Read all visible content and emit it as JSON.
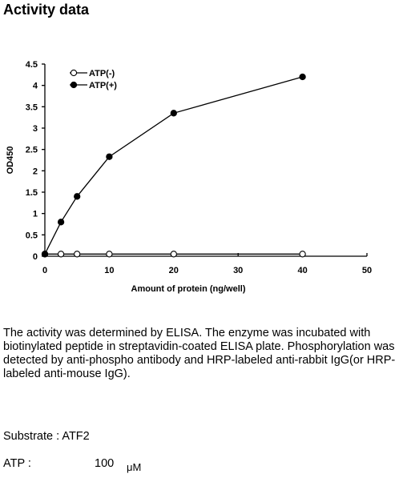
{
  "heading": "Activity data",
  "chart_data": {
    "type": "line",
    "title": "",
    "xlabel": "Amount of protein (ng/well)",
    "ylabel": "OD450",
    "xlim": [
      0,
      50
    ],
    "ylim": [
      0,
      4.5
    ],
    "xticks": [
      "0",
      "10",
      "20",
      "30",
      "40",
      "50"
    ],
    "yticks": [
      "0",
      "0.5",
      "1",
      "1.5",
      "2",
      "2.5",
      "3",
      "3.5",
      "4",
      "4.5"
    ],
    "grid": false,
    "legend_position": "top-left",
    "series": [
      {
        "name": "ATP(-)",
        "marker": "open-circle",
        "color": "#000000",
        "x": [
          0,
          2.5,
          5,
          10,
          20,
          40
        ],
        "y": [
          0.05,
          0.05,
          0.05,
          0.05,
          0.05,
          0.05
        ]
      },
      {
        "name": "ATP(+)",
        "marker": "filled-circle",
        "color": "#000000",
        "x": [
          0,
          2.5,
          5,
          10,
          20,
          40
        ],
        "y": [
          0.05,
          0.8,
          1.4,
          2.33,
          3.35,
          4.2
        ]
      }
    ]
  },
  "description": "The activity was determined by ELISA. The enzyme was incubated with biotinylated peptide in streptavidin-coated ELISA plate. Phosphorylation was detected by anti-phospho antibody and HRP-labeled anti-rabbit IgG(or HRP-labeled anti-mouse IgG).",
  "substrate": "Substrate : ATF2",
  "atp": {
    "label": "ATP :",
    "value": "100",
    "unit": "μM"
  }
}
